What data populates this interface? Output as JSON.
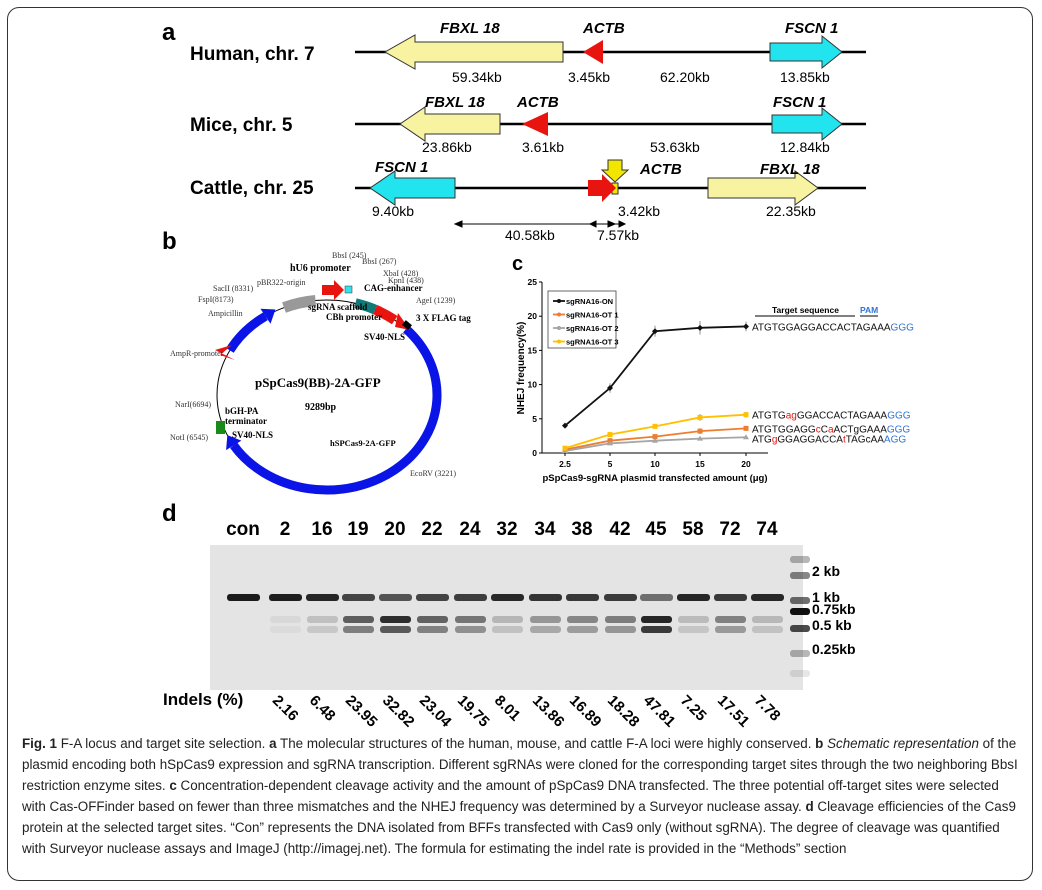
{
  "panel_labels": {
    "a": "a",
    "b": "b",
    "c": "c",
    "d": "d"
  },
  "panel_a": {
    "human": {
      "title": "Human, chr. 7",
      "genes": {
        "fbxl18": "FBXL 18",
        "actb": "ACTB",
        "fscn1": "FSCN 1"
      },
      "distances": [
        "59.34kb",
        "3.45kb",
        "62.20kb",
        "13.85kb"
      ]
    },
    "mice": {
      "title": "Mice, chr. 5",
      "genes": {
        "fbxl18": "FBXL 18",
        "actb": "ACTB",
        "fscn1": "FSCN 1"
      },
      "distances": [
        "23.86kb",
        "3.61kb",
        "53.63kb",
        "12.84kb"
      ]
    },
    "cattle": {
      "title": "Cattle, chr. 25",
      "genes": {
        "fscn1": "FSCN 1",
        "actb": "ACTB",
        "fbxl18": "FBXL 18"
      },
      "distances": [
        "9.40kb",
        "3.42kb",
        "22.35kb"
      ],
      "spans": [
        "40.58kb",
        "7.57kb"
      ]
    }
  },
  "panel_b": {
    "name": "pSpCas9(BB)-2A-GFP",
    "size": "9289bp",
    "features": {
      "hu6": "hU6 promoter",
      "scaffold": "sgRNA scaffold",
      "cbh": "CBh promoter",
      "cag": "CAG-enhancer",
      "flag": "3 X FLAG tag",
      "nls1": "SV40-NLS",
      "nls2": "SV40-NLS",
      "cas9": "hSPCas9-2A-GFP",
      "bgh1": "bGH-PA",
      "bgh2": "terminator",
      "amp": "Ampicillin",
      "ampr": "AmpR-promoter",
      "pbr": "pBR322-origin"
    },
    "sites": {
      "bbs1": "BbsI (245)",
      "bbs2": "BbsI (267)",
      "xba": "XbaI (428)",
      "kpn": "KpnI (438)",
      "age": "AgeI (1239)",
      "ecorv": "EcoRV (3221)",
      "not": "NotI (6545)",
      "nar": "NarI(6694)",
      "fsp": "FspI(8173)",
      "sac": "SacII (8331)"
    }
  },
  "chart_data": {
    "type": "line",
    "xlabel": "pSpCas9-sgRNA plasmid  transfected amount (μg)",
    "ylabel": "NHEJ frequency(%)",
    "categories": [
      "2.5",
      "5",
      "10",
      "15",
      "20"
    ],
    "ylim": [
      0,
      25
    ],
    "yticks": [
      "0",
      "5",
      "10",
      "15",
      "20",
      "25"
    ],
    "legend_position": "top-left",
    "series": [
      {
        "name": "sgRNA16-ON",
        "color": "#111111",
        "values": [
          4.0,
          9.5,
          17.8,
          18.3,
          18.5
        ],
        "err": [
          0.2,
          0.7,
          0.8,
          1.0,
          0.7
        ]
      },
      {
        "name": "sgRNA16-OT 1",
        "color": "#ed7d31",
        "values": [
          0.5,
          1.8,
          2.4,
          3.2,
          3.6
        ],
        "err": [
          0.1,
          0.3,
          0.3,
          0.4,
          0.3
        ]
      },
      {
        "name": "sgRNA16-OT 2",
        "color": "#a5a5a5",
        "values": [
          0.3,
          1.4,
          1.8,
          2.1,
          2.3
        ],
        "err": [
          0.1,
          0.2,
          0.2,
          0.2,
          0.2
        ]
      },
      {
        "name": "sgRNA16-OT 3",
        "color": "#ffc000",
        "values": [
          0.7,
          2.7,
          3.9,
          5.2,
          5.6
        ],
        "err": [
          0.1,
          0.3,
          0.3,
          0.5,
          0.4
        ]
      }
    ],
    "annotations": {
      "target_header": "Target sequence",
      "pam_header": "PAM",
      "sequences": [
        [
          [
            "ATGTGGAGGACCACTAGAAA",
            "k"
          ],
          [
            "GGG",
            "b"
          ]
        ],
        [
          [
            "ATGTG",
            "k"
          ],
          [
            "ag",
            "r"
          ],
          [
            "GGACCACTAGAAA",
            "k"
          ],
          [
            "GGG",
            "b"
          ]
        ],
        [
          [
            "ATGTGGAGG",
            "k"
          ],
          [
            "c",
            "r"
          ],
          [
            "C",
            "k"
          ],
          [
            "a",
            "r"
          ],
          [
            "ACTgGAAA",
            "k"
          ],
          [
            "GGG",
            "b"
          ]
        ],
        [
          [
            "ATG",
            "k"
          ],
          [
            "g",
            "r"
          ],
          [
            "GGAGGACCA",
            "k"
          ],
          [
            "t",
            "r"
          ],
          [
            "TAGcAA",
            "k"
          ],
          [
            "AGG",
            "b"
          ]
        ]
      ]
    }
  },
  "panel_d": {
    "lanes": [
      "con",
      "2",
      "16",
      "19",
      "20",
      "22",
      "24",
      "32",
      "34",
      "38",
      "42",
      "45",
      "58",
      "72",
      "74"
    ],
    "indels": [
      "",
      "2.16",
      "6.48",
      "23.95",
      "32.82",
      "23.04",
      "19.75",
      "8.01",
      "13.86",
      "16.89",
      "18.28",
      "47.81",
      "7.25",
      "17.51",
      "7.78"
    ],
    "indel_label": "Indels (%)",
    "ladder": [
      "2 kb",
      "1 kb",
      "0.75kb",
      "0.5 kb",
      "0.25kb"
    ]
  },
  "caption": {
    "fig": "Fig. 1",
    "title": " F-A locus and target site selection. ",
    "a": "a",
    "a_text": " The molecular structures of the human, mouse, and cattle F-A loci were highly conserved. ",
    "b": "b",
    "b_italic": " Schematic representation",
    "b_text": " of the plasmid encoding both hSpCas9 expression and sgRNA transcription. Different sgRNAs were cloned for the corresponding target sites through the two neighboring BbsI restriction enzyme sites. ",
    "c": "c",
    "c_text": " Concentration-dependent cleavage activity and the amount of pSpCas9 DNA transfected. The three potential off-target sites were selected with Cas-OFFinder based on fewer than three mismatches and the NHEJ frequency was determined by a Surveyor nuclease assay. ",
    "d": "d",
    "d_text": " Cleavage efficiencies of the Cas9 protein at the selected target sites. “Con” represents the DNA isolated from BFFs transfected with Cas9 only (without sgRNA). The degree of cleavage was quantified with Surveyor nuclease assays and ImageJ (http://imagej.net). The formula for estimating the indel rate is provided in the “Methods” section"
  }
}
